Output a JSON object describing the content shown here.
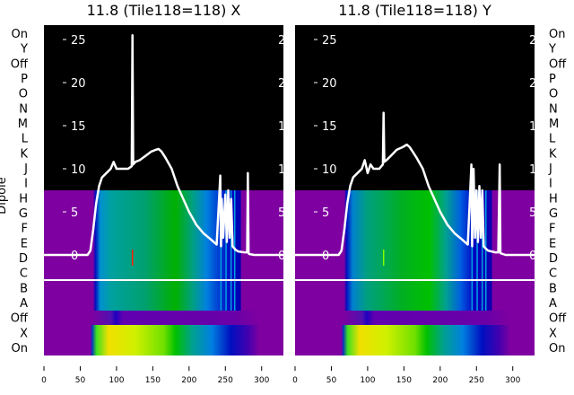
{
  "chart_data": [
    {
      "type": "heatmap",
      "title": "11.8 (Tile118=118) X",
      "ylabel": "Dipole",
      "row_labels": [
        "On",
        "Y",
        "Off",
        "P",
        "O",
        "N",
        "M",
        "L",
        "K",
        "J",
        "I",
        "H",
        "G",
        "F",
        "E",
        "D",
        "C",
        "B",
        "A",
        "Off",
        "X",
        "On"
      ],
      "x_ticks": [
        0,
        50,
        100,
        150,
        200,
        250,
        300
      ],
      "xlim": [
        0,
        330
      ],
      "overlay_line": {
        "y_ticks": [
          0,
          5,
          10,
          15,
          20,
          25
        ],
        "ylim": [
          -11.5,
          26.5
        ],
        "x": [
          0,
          60,
          64,
          68,
          72,
          76,
          80,
          86,
          92,
          96,
          100,
          108,
          116,
          121,
          122,
          123,
          126,
          132,
          140,
          148,
          154,
          158,
          162,
          168,
          176,
          184,
          192,
          200,
          210,
          220,
          230,
          238,
          243,
          244,
          245,
          247,
          250,
          252,
          254,
          256,
          258,
          260,
          262,
          264,
          268,
          276,
          280,
          281,
          282,
          283,
          290,
          330
        ],
        "y": [
          0,
          0,
          0.5,
          3,
          6,
          8,
          9,
          9.5,
          10,
          10.8,
          10,
          10,
          10,
          10.3,
          25.5,
          10.5,
          10.8,
          11,
          11.5,
          12,
          12.2,
          12.3,
          12,
          11.2,
          10,
          8,
          6.5,
          5,
          3.5,
          2.5,
          1.8,
          1.2,
          9.2,
          1,
          6.5,
          2,
          7,
          1.5,
          7.5,
          2,
          6.5,
          1,
          0.8,
          0.6,
          0.4,
          0.3,
          0.3,
          9.5,
          0.2,
          0.1,
          0,
          0
        ]
      },
      "marker_x": 122
    },
    {
      "type": "heatmap",
      "title": "11.8 (Tile118=118) Y",
      "ylabel": "",
      "row_labels": [
        "On",
        "Y",
        "Off",
        "P",
        "O",
        "N",
        "M",
        "L",
        "K",
        "J",
        "I",
        "H",
        "G",
        "F",
        "E",
        "D",
        "C",
        "B",
        "A",
        "Off",
        "X",
        "On"
      ],
      "x_ticks": [
        0,
        50,
        100,
        150,
        200,
        250,
        300
      ],
      "xlim": [
        0,
        330
      ],
      "overlay_line": {
        "y_ticks": [
          0,
          5,
          10,
          15,
          20,
          25
        ],
        "ylim": [
          -11.5,
          26.5
        ],
        "x": [
          0,
          60,
          64,
          68,
          72,
          76,
          80,
          86,
          92,
          96,
          100,
          104,
          108,
          116,
          121,
          122,
          123,
          126,
          132,
          140,
          148,
          154,
          158,
          162,
          168,
          176,
          184,
          192,
          200,
          210,
          220,
          230,
          238,
          243,
          244,
          246,
          248,
          250,
          252,
          254,
          256,
          258,
          260,
          262,
          266,
          276,
          280,
          282,
          283,
          290,
          330
        ],
        "y": [
          0,
          0,
          0.5,
          3,
          6,
          8,
          9,
          9.5,
          10,
          11,
          9.5,
          10.5,
          10,
          10,
          10.5,
          16.5,
          10.8,
          11,
          11.5,
          12.2,
          12.5,
          12.8,
          12.5,
          12,
          11.2,
          10,
          8,
          6.5,
          5,
          3.5,
          2.5,
          1.8,
          1.2,
          10.5,
          1,
          10,
          2,
          7.5,
          1.5,
          8,
          2,
          7.5,
          1,
          0.8,
          0.5,
          0.3,
          0.3,
          10.5,
          0.2,
          0,
          0
        ]
      },
      "marker_x": 122
    }
  ],
  "colors": {
    "background_top": "#000000",
    "empty": "#7f00a0",
    "line": "#ffffff"
  }
}
